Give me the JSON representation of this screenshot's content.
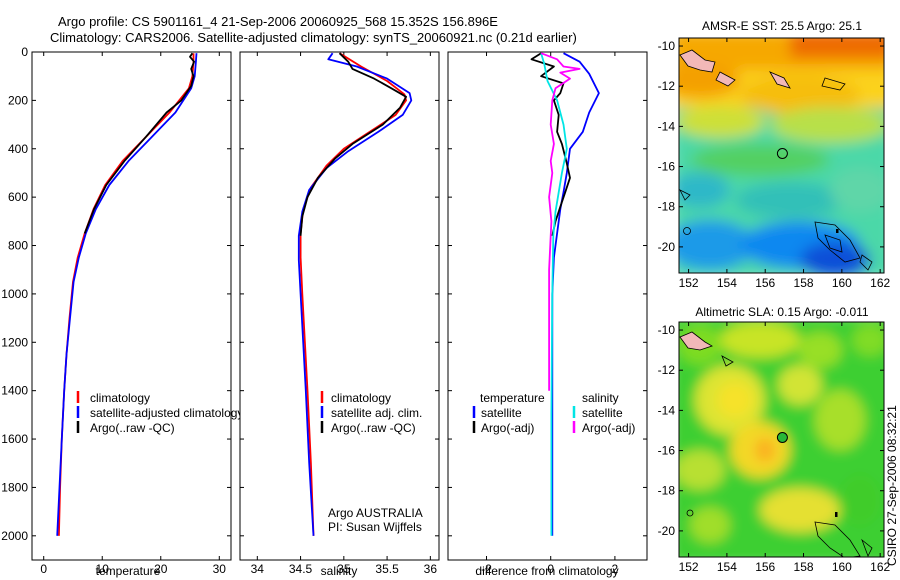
{
  "figure": {
    "title_line1": "Argo profile: CS 5901161_4 21-Sep-2006 20060925_568 15.352S 156.896E",
    "title_line2": "Climatology: CARS2006. Satellite-adjusted climatology: synTS_20060921.nc (0.21d earlier)",
    "footer_vertical": "CSIRO 27-Sep-2006 08:32:21",
    "colors": {
      "climatology": "#ff0000",
      "satellite": "#0000ff",
      "argo": "#000000",
      "sat_salinity": "#00e5e5",
      "argo_salinity": "#ff00ff"
    }
  },
  "chart_data": [
    {
      "type": "line",
      "name": "temperature-profile",
      "xlabel": "temperature",
      "ylabel": "",
      "xlim": [
        -2,
        32
      ],
      "ylim": [
        2100,
        0
      ],
      "xticks": [
        "0",
        "10",
        "20",
        "30"
      ],
      "yticks": [
        "0",
        "200",
        "400",
        "600",
        "800",
        "1000",
        "1200",
        "1400",
        "1600",
        "1800",
        "2000"
      ],
      "series": [
        {
          "name": "climatology",
          "color": "#ff0000",
          "points": [
            [
              25.6,
              5
            ],
            [
              25.6,
              40
            ],
            [
              25.4,
              100
            ],
            [
              24.8,
              150
            ],
            [
              21.5,
              250
            ],
            [
              17.5,
              350
            ],
            [
              13.5,
              450
            ],
            [
              10.5,
              550
            ],
            [
              8.5,
              650
            ],
            [
              7,
              750
            ],
            [
              5.8,
              850
            ],
            [
              5,
              950
            ],
            [
              4.4,
              1100
            ],
            [
              3.9,
              1250
            ],
            [
              3.5,
              1400
            ],
            [
              3.1,
              1600
            ],
            [
              2.8,
              1800
            ],
            [
              2.6,
              2000
            ]
          ]
        },
        {
          "name": "satellite-adjusted climatology",
          "color": "#0000ff",
          "points": [
            [
              26.1,
              5
            ],
            [
              26,
              40
            ],
            [
              25.8,
              100
            ],
            [
              25.2,
              150
            ],
            [
              22.5,
              250
            ],
            [
              18.5,
              350
            ],
            [
              14.5,
              450
            ],
            [
              11.2,
              550
            ],
            [
              8.9,
              650
            ],
            [
              7.2,
              750
            ],
            [
              6,
              850
            ],
            [
              5.1,
              950
            ],
            [
              4.5,
              1100
            ],
            [
              3.9,
              1250
            ],
            [
              3.5,
              1400
            ],
            [
              3.1,
              1600
            ],
            [
              2.7,
              1800
            ],
            [
              2.3,
              2000
            ]
          ]
        },
        {
          "name": "Argo(..raw -QC)",
          "color": "#000000",
          "points": [
            [
              25.4,
              5
            ],
            [
              25,
              20
            ],
            [
              25.7,
              40
            ],
            [
              25.2,
              70
            ],
            [
              25.6,
              100
            ],
            [
              25.2,
              140
            ],
            [
              23.5,
              200
            ],
            [
              21,
              250
            ],
            [
              17.5,
              350
            ],
            [
              13.8,
              450
            ],
            [
              10.7,
              550
            ],
            [
              8.6,
              650
            ],
            [
              7,
              750
            ]
          ]
        }
      ],
      "legend": [
        "climatology",
        "satellite-adjusted climatology",
        "Argo(..raw -QC)"
      ]
    },
    {
      "type": "line",
      "name": "salinity-profile",
      "xlabel": "salinity",
      "xlim": [
        33.8,
        36.1
      ],
      "ylim": [
        2100,
        0
      ],
      "xticks": [
        "34",
        "34.5",
        "35",
        "35.5",
        "36"
      ],
      "series": [
        {
          "name": "climatology",
          "color": "#ff0000",
          "points": [
            [
              34.95,
              5
            ],
            [
              35.2,
              60
            ],
            [
              35.5,
              120
            ],
            [
              35.7,
              175
            ],
            [
              35.72,
              200
            ],
            [
              35.6,
              260
            ],
            [
              35.3,
              330
            ],
            [
              35,
              400
            ],
            [
              34.8,
              470
            ],
            [
              34.62,
              560
            ],
            [
              34.53,
              650
            ],
            [
              34.5,
              750
            ],
            [
              34.5,
              850
            ],
            [
              34.52,
              1000
            ],
            [
              34.55,
              1200
            ],
            [
              34.58,
              1400
            ],
            [
              34.62,
              1700
            ],
            [
              34.65,
              2000
            ]
          ]
        },
        {
          "name": "satellite adj. clim.",
          "color": "#0000ff",
          "points": [
            [
              34.87,
              5
            ],
            [
              34.82,
              30
            ],
            [
              35.15,
              60
            ],
            [
              35.5,
              110
            ],
            [
              35.76,
              170
            ],
            [
              35.78,
              200
            ],
            [
              35.68,
              260
            ],
            [
              35.4,
              330
            ],
            [
              35.05,
              410
            ],
            [
              34.8,
              480
            ],
            [
              34.6,
              570
            ],
            [
              34.52,
              660
            ],
            [
              34.48,
              760
            ],
            [
              34.48,
              860
            ],
            [
              34.5,
              1000
            ],
            [
              34.53,
              1200
            ],
            [
              34.56,
              1400
            ],
            [
              34.6,
              1700
            ],
            [
              34.65,
              2000
            ]
          ]
        },
        {
          "name": "Argo(..raw -QC)",
          "color": "#000000",
          "points": [
            [
              34.95,
              5
            ],
            [
              35.05,
              40
            ],
            [
              35.1,
              70
            ],
            [
              35.35,
              110
            ],
            [
              35.55,
              150
            ],
            [
              35.72,
              185
            ],
            [
              35.65,
              230
            ],
            [
              35.45,
              300
            ],
            [
              35.1,
              380
            ],
            [
              34.9,
              440
            ],
            [
              34.7,
              520
            ],
            [
              34.58,
              600
            ],
            [
              34.52,
              680
            ],
            [
              34.5,
              760
            ]
          ]
        }
      ],
      "legend": [
        "climatology",
        "satellite adj. clim.",
        "Argo(..raw -QC)"
      ],
      "annotation_line1": "Argo AUSTRALIA",
      "annotation_line2": "PI: Susan Wijffels"
    },
    {
      "type": "line",
      "name": "difference-profile",
      "xlabel": "difference from climatology",
      "xlim": [
        -3.2,
        3
      ],
      "ylim": [
        2100,
        0
      ],
      "xticks": [
        "-2",
        "0",
        "2"
      ],
      "series": [
        {
          "name": "temperature satellite",
          "color": "#0000ff",
          "points": [
            [
              0.4,
              5
            ],
            [
              0.9,
              40
            ],
            [
              1.2,
              90
            ],
            [
              1.5,
              170
            ],
            [
              1.2,
              250
            ],
            [
              1,
              330
            ],
            [
              0.6,
              400
            ],
            [
              0.5,
              500
            ],
            [
              0.4,
              580
            ],
            [
              0.3,
              650
            ],
            [
              0.2,
              750
            ],
            [
              0.1,
              850
            ],
            [
              0.05,
              1000
            ],
            [
              0.05,
              1500
            ],
            [
              0.05,
              2000
            ]
          ]
        },
        {
          "name": "temperature Argo(-adj)",
          "color": "#000000",
          "points": [
            [
              -0.3,
              5
            ],
            [
              -0.6,
              30
            ],
            [
              0.1,
              60
            ],
            [
              -0.3,
              100
            ],
            [
              0.4,
              130
            ],
            [
              0.3,
              170
            ],
            [
              0.1,
              200
            ],
            [
              0.25,
              260
            ],
            [
              0.2,
              330
            ],
            [
              0.35,
              380
            ],
            [
              0.5,
              460
            ],
            [
              0.6,
              520
            ],
            [
              0.45,
              580
            ],
            [
              0.3,
              640
            ],
            [
              0.15,
              700
            ],
            [
              0.05,
              760
            ]
          ]
        },
        {
          "name": "salinity satellite",
          "color": "#00e5e5",
          "points": [
            [
              -0.3,
              5
            ],
            [
              -0.2,
              50
            ],
            [
              -0.1,
              120
            ],
            [
              0.2,
              200
            ],
            [
              0.4,
              300
            ],
            [
              0.5,
              400
            ],
            [
              0.35,
              500
            ],
            [
              0.25,
              580
            ],
            [
              0.15,
              660
            ],
            [
              0.08,
              760
            ],
            [
              0.05,
              1000
            ],
            [
              0.02,
              1500
            ],
            [
              0.02,
              2000
            ]
          ]
        },
        {
          "name": "salinity Argo(-adj)",
          "color": "#ff00ff",
          "points": [
            [
              -0.3,
              5
            ],
            [
              0.2,
              30
            ],
            [
              0.4,
              60
            ],
            [
              0.9,
              70
            ],
            [
              0.3,
              85
            ],
            [
              0.6,
              110
            ],
            [
              0.15,
              150
            ],
            [
              0.05,
              200
            ],
            [
              0,
              300
            ],
            [
              0.1,
              380
            ],
            [
              0,
              450
            ],
            [
              0.05,
              500
            ],
            [
              -0.05,
              600
            ],
            [
              0.02,
              700
            ],
            [
              -0.05,
              900
            ],
            [
              -0.05,
              1100
            ],
            [
              -0.05,
              1400
            ]
          ]
        }
      ],
      "legend_temperature_heading": "temperature",
      "legend_salinity_heading": "salinity",
      "legend": [
        "satellite",
        "Argo(-adj)",
        "satellite",
        "Argo(-adj)"
      ]
    },
    {
      "type": "heatmap",
      "name": "sst-map",
      "title": "AMSR-E SST: 25.5 Argo: 25.1",
      "xlim": [
        151.5,
        162.2
      ],
      "ylim": [
        -21.3,
        -9.6
      ],
      "xticks": [
        "152",
        "154",
        "156",
        "158",
        "160",
        "162"
      ],
      "yticks": [
        "-10",
        "-12",
        "-14",
        "-16",
        "-18",
        "-20"
      ],
      "argo_position": [
        156.896,
        -15.352
      ]
    },
    {
      "type": "heatmap",
      "name": "sla-map",
      "title": "Altimetric SLA: 0.15 Argo: -0.011",
      "xlim": [
        151.5,
        162.2
      ],
      "ylim": [
        -21.3,
        -9.6
      ],
      "xticks": [
        "152",
        "154",
        "156",
        "158",
        "160",
        "162"
      ],
      "yticks": [
        "-10",
        "-12",
        "-14",
        "-16",
        "-18",
        "-20"
      ],
      "argo_position": [
        156.896,
        -15.352
      ]
    }
  ]
}
